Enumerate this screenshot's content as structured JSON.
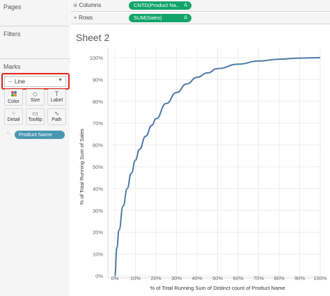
{
  "left_panel": {
    "pages_title": "Pages",
    "filters_title": "Filters",
    "marks_title": "Marks",
    "mark_type": "Line",
    "mark_tiles": [
      {
        "label": "Color",
        "icon": "color-icon"
      },
      {
        "label": "Size",
        "icon": "size-icon"
      },
      {
        "label": "Label",
        "icon": "label-icon"
      },
      {
        "label": "Detail",
        "icon": "detail-icon"
      },
      {
        "label": "Tooltip",
        "icon": "tooltip-icon"
      },
      {
        "label": "Path",
        "icon": "path-icon"
      }
    ],
    "detail_pill": "Product Name"
  },
  "shelves": {
    "columns_label": "Columns",
    "columns_pill": "CNTD(Product Na..",
    "rows_label": "Rows",
    "rows_pill": "SUM(Sales)",
    "delta_symbol": "Δ"
  },
  "sheet": {
    "title": "Sheet 2"
  },
  "colors": {
    "line": "#4e79a7",
    "accent_green": "#12a56b",
    "pill_blue": "#4996b2",
    "highlight_red": "#e0231a"
  },
  "chart_data": {
    "type": "line",
    "xlabel": "% of Total Running Sum of Distinct count of Product Name",
    "ylabel": "% of Total Running Sum of Sales",
    "x_ticks": [
      "0%",
      "10%",
      "20%",
      "30%",
      "40%",
      "50%",
      "60%",
      "70%",
      "80%",
      "90%",
      "100%"
    ],
    "y_ticks": [
      "0%",
      "10%",
      "20%",
      "30%",
      "40%",
      "50%",
      "60%",
      "70%",
      "80%",
      "90%",
      "100%"
    ],
    "xlim": [
      0,
      100
    ],
    "ylim": [
      0,
      100
    ],
    "grid": true,
    "series": [
      {
        "x": [
          0,
          1,
          2,
          4,
          6,
          8,
          10,
          12,
          15,
          18,
          20,
          25,
          30,
          35,
          40,
          45,
          50,
          60,
          70,
          80,
          90,
          100
        ],
        "y": [
          0,
          13,
          21,
          32,
          40,
          47,
          53,
          58,
          64,
          69,
          72,
          79,
          84,
          88,
          91,
          93,
          95,
          97,
          98.5,
          99.3,
          99.8,
          100
        ]
      }
    ]
  }
}
